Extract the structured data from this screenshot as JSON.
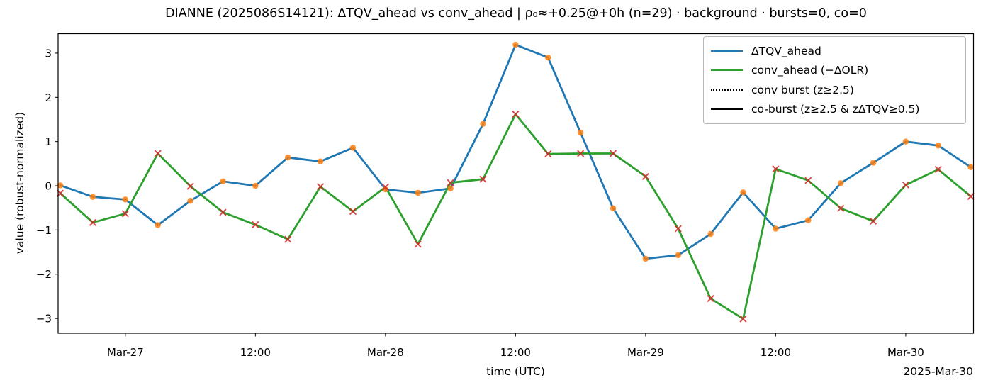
{
  "figure": {
    "title": "DIANNE (2025086S14121): ΔTQV_ahead vs conv_ahead | ρ₀≈+0.25@+0h (n=29) · background · bursts=0, co=0",
    "xlabel": "time (UTC)",
    "ylabel": "value (robust-normalized)",
    "x_offset_text": "2025-Mar-30"
  },
  "chart_data": {
    "type": "line",
    "title": "DIANNE (2025086S14121): ΔTQV_ahead vs conv_ahead | ρ₀≈+0.25@+0h (n=29) · background · bursts=0, co=0",
    "xlabel": "time (UTC)",
    "ylabel": "value (robust-normalized)",
    "n_points": 29,
    "x_start_utc": "2025-03-26 18:00",
    "x_step_hours": 3,
    "x_hours": [
      0,
      3,
      6,
      9,
      12,
      15,
      18,
      21,
      24,
      27,
      30,
      33,
      36,
      39,
      42,
      45,
      48,
      51,
      54,
      57,
      60,
      63,
      66,
      69,
      72,
      75,
      78,
      81,
      84
    ],
    "x_times_utc": [
      "03-26 18:00",
      "03-26 21:00",
      "03-27 00:00",
      "03-27 03:00",
      "03-27 06:00",
      "03-27 09:00",
      "03-27 12:00",
      "03-27 15:00",
      "03-27 18:00",
      "03-27 21:00",
      "03-28 00:00",
      "03-28 03:00",
      "03-28 06:00",
      "03-28 09:00",
      "03-28 12:00",
      "03-28 15:00",
      "03-28 18:00",
      "03-28 21:00",
      "03-29 00:00",
      "03-29 03:00",
      "03-29 06:00",
      "03-29 09:00",
      "03-29 12:00",
      "03-29 15:00",
      "03-29 18:00",
      "03-29 21:00",
      "03-30 00:00",
      "03-30 03:00",
      "03-30 06:00"
    ],
    "series": [
      {
        "name": "ΔTQV_ahead",
        "color": "#1f77b4",
        "marker": "circle",
        "marker_color": "#ff7f0e",
        "values": [
          0.01,
          -0.25,
          -0.31,
          -0.89,
          -0.34,
          0.1,
          0.0,
          0.64,
          0.55,
          0.86,
          -0.08,
          -0.16,
          -0.06,
          1.4,
          3.19,
          2.9,
          1.2,
          -0.51,
          -1.65,
          -1.57,
          -1.09,
          -0.15,
          -0.97,
          -0.78,
          0.06,
          0.52,
          1.0,
          0.91,
          0.42
        ]
      },
      {
        "name": "conv_ahead (−ΔOLR)",
        "color": "#2ca02c",
        "marker": "x",
        "marker_color": "#d62728",
        "values": [
          -0.17,
          -0.83,
          -0.63,
          0.73,
          -0.01,
          -0.6,
          -0.88,
          -1.21,
          -0.02,
          -0.58,
          -0.03,
          -1.32,
          0.07,
          0.15,
          1.62,
          0.72,
          0.73,
          0.73,
          0.21,
          -0.97,
          -2.55,
          -3.01,
          0.38,
          0.12,
          -0.51,
          -0.8,
          0.02,
          0.37,
          -0.24
        ]
      }
    ],
    "legend_extra": [
      {
        "name": "conv burst (z≥2.5)",
        "style": "dotted",
        "color": "#000000"
      },
      {
        "name": "co-burst (z≥2.5 & zΔTQV≥0.5)",
        "style": "solid",
        "color": "#000000"
      }
    ],
    "legend_position": "upper right",
    "grid": false,
    "burst_markers_drawn": 0,
    "co_burst_markers_drawn": 0,
    "xticks": [
      {
        "t": 6,
        "label": "Mar-27"
      },
      {
        "t": 18,
        "label": "12:00"
      },
      {
        "t": 30,
        "label": "Mar-28"
      },
      {
        "t": 42,
        "label": "12:00"
      },
      {
        "t": 54,
        "label": "Mar-29"
      },
      {
        "t": 66,
        "label": "12:00"
      },
      {
        "t": 78,
        "label": "Mar-30"
      }
    ],
    "yticks": [
      {
        "v": -3,
        "label": "−3"
      },
      {
        "v": -2,
        "label": "−2"
      },
      {
        "v": -1,
        "label": "−1"
      },
      {
        "v": 0,
        "label": "0"
      },
      {
        "v": 1,
        "label": "1"
      },
      {
        "v": 2,
        "label": "2"
      },
      {
        "v": 3,
        "label": "3"
      }
    ],
    "xlim_hours": [
      -0.2,
      84.25
    ],
    "ylim": [
      -3.335,
      3.44
    ]
  }
}
